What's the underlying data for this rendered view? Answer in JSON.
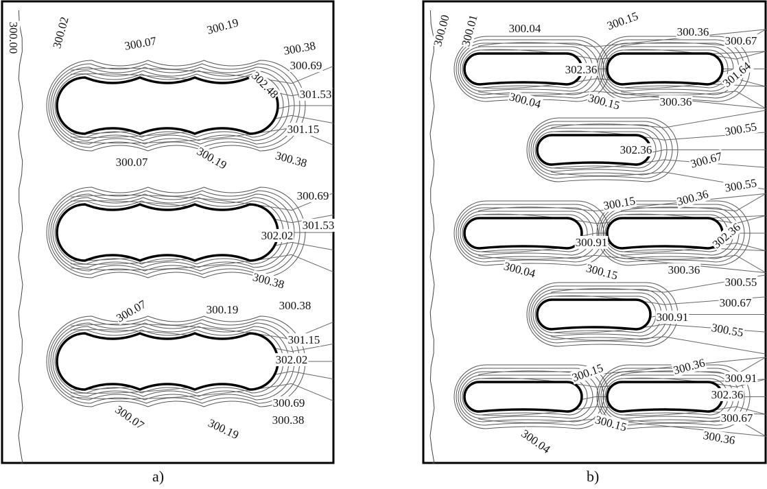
{
  "panels": [
    {
      "caption": "a)",
      "labels": [
        "300.00",
        "300.02",
        "300.07",
        "300.19",
        "300.38",
        "300.69",
        "302.48",
        "301.53",
        "301.15",
        "300.07",
        "300.19",
        "300.38",
        "300.69",
        "301.53",
        "302.02",
        "300.38",
        "300.07",
        "300.19",
        "300.38",
        "301.15",
        "302.02",
        "300.69",
        "300.38",
        "300.07",
        "300.19"
      ]
    },
    {
      "caption": "b)",
      "labels": [
        "300.00",
        "300.01",
        "300.04",
        "300.15",
        "300.36",
        "300.67",
        "302.36",
        "301.64",
        "300.04",
        "300.15",
        "300.36",
        "300.55",
        "302.36",
        "300.67",
        "300.15",
        "300.36",
        "300.55",
        "300.91",
        "302.36",
        "300.04",
        "300.15",
        "300.36",
        "300.55",
        "300.67",
        "300.91",
        "300.55",
        "300.15",
        "300.36",
        "300.91",
        "302.36",
        "300.67",
        "300.36",
        "300.04",
        "300.15"
      ]
    }
  ]
}
